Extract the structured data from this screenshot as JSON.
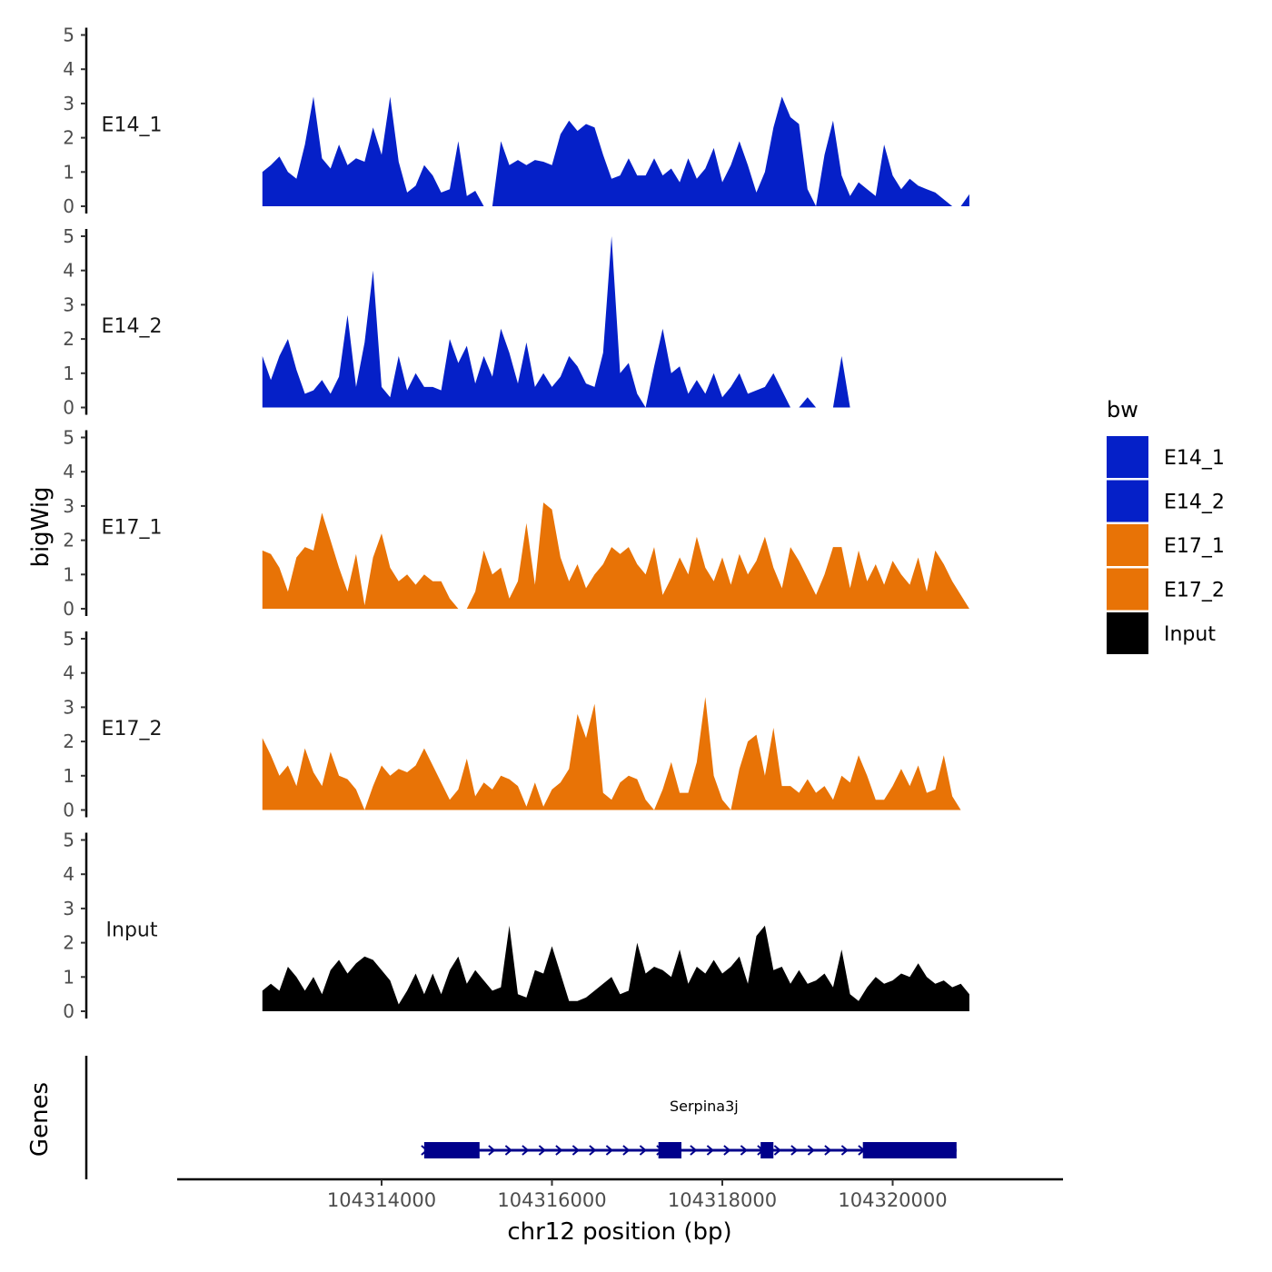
{
  "chart_data": {
    "type": "area",
    "ylabel": "bigWig",
    "xlabel": "chr12 position (bp)",
    "genes_label": "Genes",
    "ylim": [
      0,
      5
    ],
    "yticks": [
      "0",
      "1",
      "2",
      "3",
      "4",
      "5"
    ],
    "xlim": [
      104311600,
      104322000
    ],
    "xticks": [
      104314000,
      104316000,
      104318000,
      104320000
    ],
    "xtick_labels": [
      "104314000",
      "104316000",
      "104318000",
      "104320000"
    ],
    "data_range": [
      104312600,
      104320750
    ],
    "legend": {
      "title": "bw",
      "position": "right",
      "entries": [
        {
          "label": "E14_1",
          "color": "#0520C8"
        },
        {
          "label": "E14_2",
          "color": "#0520C8"
        },
        {
          "label": "E17_1",
          "color": "#E87306"
        },
        {
          "label": "E17_2",
          "color": "#E87306"
        },
        {
          "label": "Input",
          "color": "#000000"
        }
      ]
    },
    "series": [
      {
        "name": "E14_1",
        "color": "#0520C8",
        "step_bp": 100,
        "values": [
          1.0,
          1.2,
          1.45,
          1.0,
          0.8,
          1.8,
          3.2,
          1.4,
          1.1,
          1.8,
          1.2,
          1.4,
          1.3,
          2.3,
          1.5,
          3.2,
          1.3,
          0.4,
          0.6,
          1.2,
          0.9,
          0.4,
          0.5,
          1.9,
          0.3,
          0.45,
          0.0,
          0.0,
          1.9,
          1.2,
          1.35,
          1.2,
          1.35,
          1.3,
          1.2,
          2.1,
          2.5,
          2.2,
          2.4,
          2.3,
          1.5,
          0.8,
          0.9,
          1.4,
          0.9,
          0.9,
          1.4,
          0.9,
          1.1,
          0.7,
          1.4,
          0.8,
          1.1,
          1.7,
          0.7,
          1.2,
          1.9,
          1.2,
          0.4,
          1.0,
          2.3,
          3.2,
          2.6,
          2.4,
          0.5,
          0.0,
          1.5,
          2.5,
          0.9,
          0.3,
          0.7,
          0.5,
          0.3,
          1.8,
          0.9,
          0.5,
          0.8,
          0.6,
          0.5,
          0.4,
          0.2,
          0.0,
          0.0,
          0.35
        ]
      },
      {
        "name": "E14_2",
        "color": "#0520C8",
        "step_bp": 100,
        "values": [
          1.5,
          0.8,
          1.5,
          2.0,
          1.1,
          0.4,
          0.5,
          0.8,
          0.4,
          0.9,
          2.7,
          0.6,
          1.9,
          4.0,
          0.6,
          0.3,
          1.5,
          0.5,
          1.0,
          0.6,
          0.6,
          0.5,
          2.0,
          1.3,
          1.8,
          0.7,
          1.5,
          0.9,
          2.3,
          1.6,
          0.7,
          1.9,
          0.6,
          1.0,
          0.6,
          0.9,
          1.5,
          1.2,
          0.7,
          0.6,
          1.6,
          5.0,
          1.0,
          1.3,
          0.4,
          0.0,
          1.2,
          2.3,
          1.0,
          1.2,
          0.4,
          0.8,
          0.4,
          1.0,
          0.3,
          0.6,
          1.0,
          0.4,
          0.5,
          0.6,
          1.0,
          0.5,
          0.0,
          0.0,
          0.3,
          0.0,
          0.0,
          0.0,
          1.5,
          0.0
        ]
      },
      {
        "name": "E17_1",
        "color": "#E87306",
        "step_bp": 100,
        "values": [
          1.7,
          1.6,
          1.2,
          0.5,
          1.5,
          1.8,
          1.7,
          2.8,
          2.0,
          1.2,
          0.5,
          1.6,
          0.1,
          1.5,
          2.2,
          1.2,
          0.8,
          1.0,
          0.7,
          1.0,
          0.8,
          0.8,
          0.3,
          0.0,
          0.0,
          0.5,
          1.7,
          1.0,
          1.2,
          0.3,
          0.8,
          2.5,
          0.7,
          3.1,
          2.9,
          1.5,
          0.8,
          1.3,
          0.6,
          1.0,
          1.3,
          1.8,
          1.6,
          1.8,
          1.3,
          1.0,
          1.8,
          0.4,
          0.9,
          1.5,
          1.0,
          2.1,
          1.2,
          0.8,
          1.5,
          0.7,
          1.6,
          1.0,
          1.4,
          2.1,
          1.2,
          0.6,
          1.8,
          1.4,
          0.9,
          0.4,
          1.0,
          1.8,
          1.8,
          0.6,
          1.7,
          0.8,
          1.3,
          0.7,
          1.4,
          1.0,
          0.7,
          1.5,
          0.5,
          1.7,
          1.3,
          0.8,
          0.4,
          0.0
        ]
      },
      {
        "name": "E17_2",
        "color": "#E87306",
        "step_bp": 100,
        "values": [
          2.1,
          1.6,
          1.0,
          1.3,
          0.7,
          1.8,
          1.1,
          0.7,
          1.7,
          1.0,
          0.9,
          0.6,
          0.0,
          0.7,
          1.3,
          1.0,
          1.2,
          1.1,
          1.3,
          1.8,
          1.3,
          0.8,
          0.3,
          0.6,
          1.5,
          0.4,
          0.8,
          0.6,
          1.0,
          0.9,
          0.7,
          0.1,
          0.8,
          0.1,
          0.6,
          0.8,
          1.2,
          2.8,
          2.1,
          3.1,
          0.5,
          0.3,
          0.8,
          1.0,
          0.9,
          0.3,
          0.0,
          0.6,
          1.4,
          0.5,
          0.5,
          1.4,
          3.3,
          1.0,
          0.3,
          0.0,
          1.2,
          2.0,
          2.2,
          1.0,
          2.4,
          0.7,
          0.7,
          0.5,
          0.9,
          0.5,
          0.7,
          0.3,
          1.0,
          0.8,
          1.6,
          1.0,
          0.3,
          0.3,
          0.7,
          1.2,
          0.7,
          1.3,
          0.5,
          0.6,
          1.6,
          0.4,
          0.0
        ]
      },
      {
        "name": "Input",
        "color": "#000000",
        "step_bp": 100,
        "values": [
          0.6,
          0.8,
          0.6,
          1.3,
          1.0,
          0.6,
          1.0,
          0.5,
          1.2,
          1.5,
          1.1,
          1.4,
          1.6,
          1.5,
          1.2,
          0.9,
          0.2,
          0.6,
          1.1,
          0.5,
          1.1,
          0.5,
          1.2,
          1.6,
          0.8,
          1.2,
          0.9,
          0.6,
          0.7,
          2.5,
          0.5,
          0.4,
          1.2,
          1.1,
          1.9,
          1.1,
          0.3,
          0.3,
          0.4,
          0.6,
          0.8,
          1.0,
          0.5,
          0.6,
          2.0,
          1.1,
          1.3,
          1.2,
          1.0,
          1.8,
          0.8,
          1.3,
          1.1,
          1.5,
          1.1,
          1.3,
          1.6,
          0.8,
          2.2,
          2.5,
          1.2,
          1.3,
          0.8,
          1.2,
          0.8,
          0.9,
          1.1,
          0.7,
          1.8,
          0.5,
          0.3,
          0.7,
          1.0,
          0.8,
          0.9,
          1.1,
          1.0,
          1.4,
          1.0,
          0.8,
          0.9,
          0.7,
          0.8,
          0.5
        ]
      }
    ],
    "gene": {
      "name": "Serpina3j",
      "strand": "+",
      "start": 104314500,
      "end": 104320750,
      "exons": [
        [
          104314500,
          104315150
        ],
        [
          104317250,
          104317520
        ],
        [
          104318450,
          104318600
        ],
        [
          104319650,
          104320750
        ]
      ],
      "color": "#00008B"
    }
  }
}
